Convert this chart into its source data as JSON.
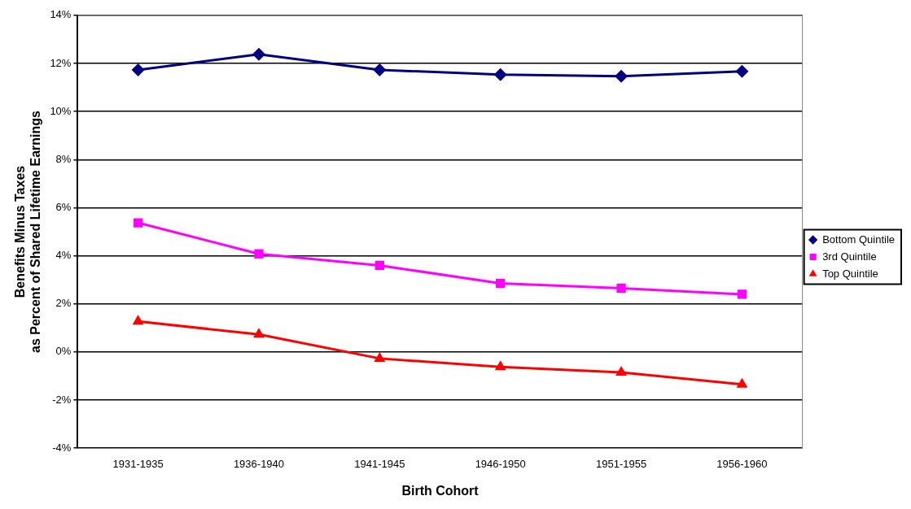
{
  "chart_data": {
    "type": "line",
    "xlabel": "Birth Cohort",
    "ylabel": "Benefits Minus Taxes\nas Percent of Shared Lifetime Earnings",
    "categories": [
      "1931-1935",
      "1936-1940",
      "1941-1945",
      "1946-1950",
      "1951-1955",
      "1956-1960"
    ],
    "series": [
      {
        "name": "Bottom Quintile",
        "color": "#000080",
        "marker": "diamond",
        "values": [
          11.73,
          12.38,
          11.73,
          11.53,
          11.47,
          11.67
        ]
      },
      {
        "name": "3rd Quintile",
        "color": "#ff00ff",
        "marker": "square",
        "values": [
          5.37,
          4.08,
          3.6,
          2.85,
          2.65,
          2.4
        ]
      },
      {
        "name": "Top Quintile",
        "color": "#ff0000",
        "marker": "triangle",
        "values": [
          1.27,
          0.73,
          -0.27,
          -0.62,
          -0.85,
          -1.35
        ]
      }
    ],
    "ylim": [
      -4,
      14
    ],
    "yticks": [
      {
        "value": -4,
        "label": "-4%"
      },
      {
        "value": -2,
        "label": "-2%"
      },
      {
        "value": 0,
        "label": "0%"
      },
      {
        "value": 2,
        "label": "2%"
      },
      {
        "value": 4,
        "label": "4%"
      },
      {
        "value": 6,
        "label": "6%"
      },
      {
        "value": 8,
        "label": "8%"
      },
      {
        "value": 10,
        "label": "10%"
      },
      {
        "value": 12,
        "label": "12%"
      },
      {
        "value": 14,
        "label": "14%"
      }
    ],
    "grid": "y",
    "legend": "right",
    "line_style": "solid"
  }
}
